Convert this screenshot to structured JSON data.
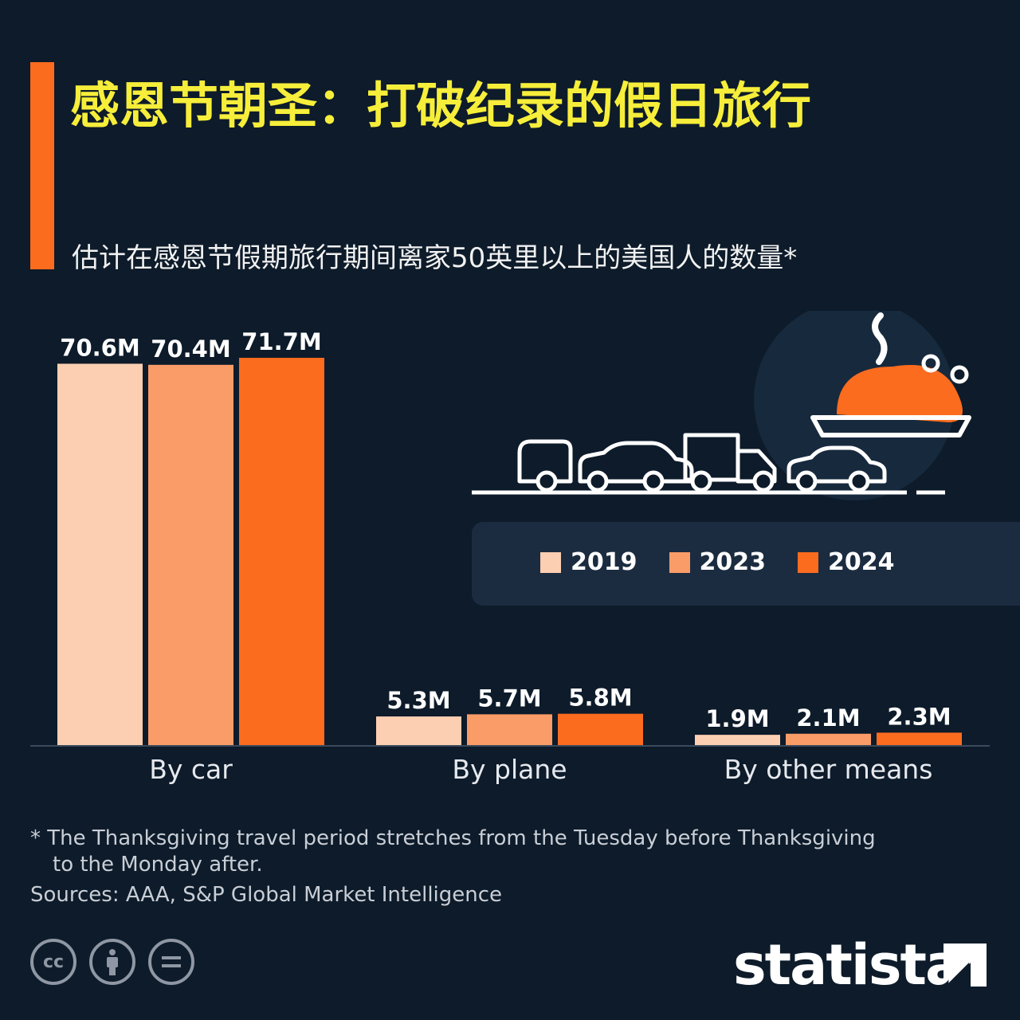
{
  "title": "感恩节朝圣：打破纪录的假日旅行",
  "subtitle": "估计在感恩节假期旅行期间离家50英里以上的美国人的数量*",
  "legend": [
    {
      "label": "2019",
      "color": "#fdcfb2"
    },
    {
      "label": "2023",
      "color": "#f99c68"
    },
    {
      "label": "2024",
      "color": "#fb6c1f"
    }
  ],
  "chart_data": {
    "type": "bar",
    "categories": [
      "By car",
      "By plane",
      "By other means"
    ],
    "series": [
      {
        "name": "2019",
        "values": [
          70.6,
          5.3,
          1.9
        ],
        "labels": [
          "70.6M",
          "5.3M",
          "1.9M"
        ],
        "color": "#fdcfb2"
      },
      {
        "name": "2023",
        "values": [
          70.4,
          5.7,
          2.1
        ],
        "labels": [
          "70.4M",
          "5.7M",
          "2.1M"
        ],
        "color": "#f99c68"
      },
      {
        "name": "2024",
        "values": [
          71.7,
          5.8,
          2.3
        ],
        "labels": [
          "71.7M",
          "5.8M",
          "2.3M"
        ],
        "color": "#fb6c1f"
      }
    ],
    "ylim": [
      0,
      71.7
    ],
    "grid": false,
    "legend_position": "right"
  },
  "footnote_line1": "* The Thanksgiving travel period stretches from the Tuesday before Thanksgiving",
  "footnote_line2": "to the Monday after.",
  "sources": "Sources: AAA, S&P Global Market Intelligence",
  "brand": "statista",
  "icons": [
    "creative-commons-icon",
    "attribution-icon",
    "no-derivatives-icon"
  ]
}
